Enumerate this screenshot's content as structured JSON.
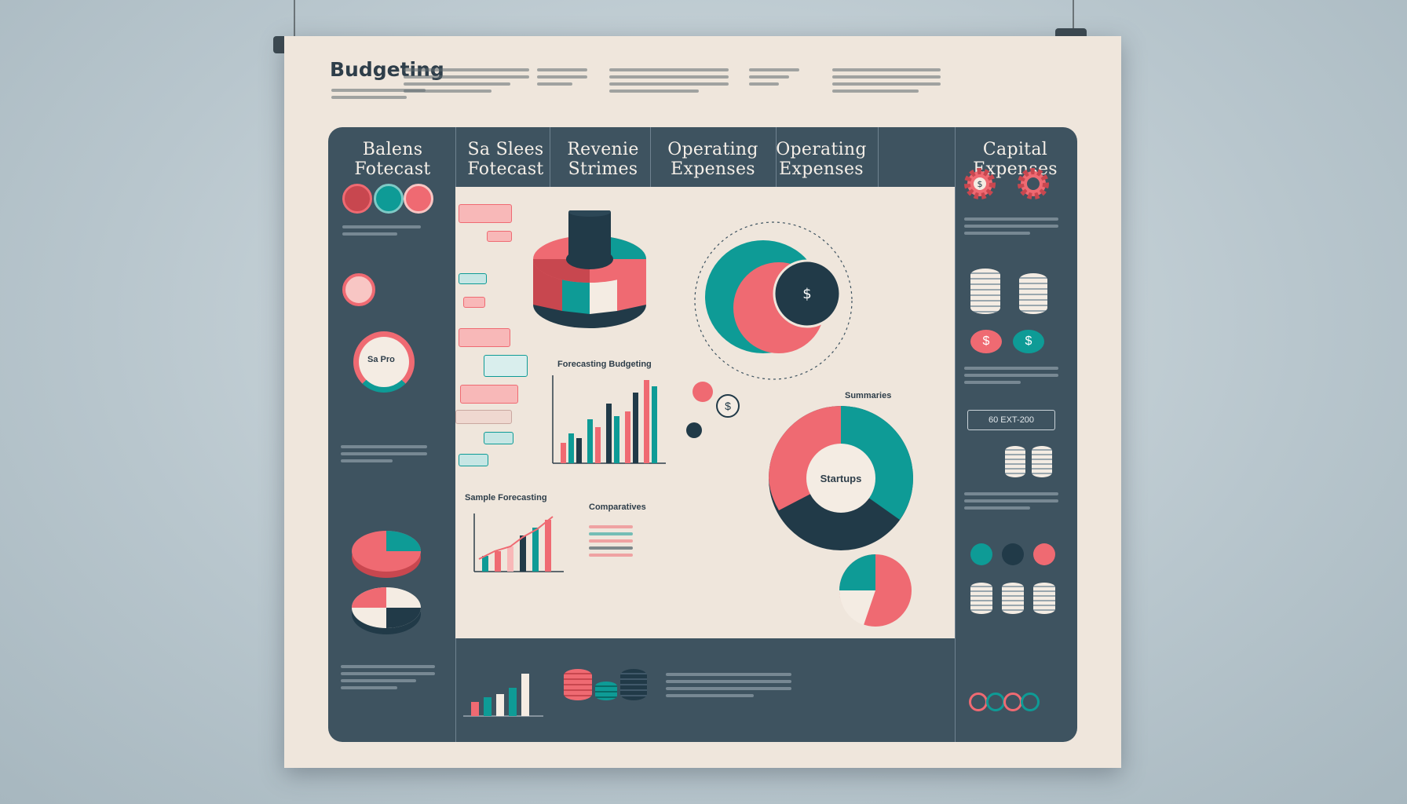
{
  "poster": {
    "title": "Budgeting"
  },
  "columns": [
    {
      "label": "Balens Fotecast"
    },
    {
      "label": "Sa Slees Fotecast"
    },
    {
      "label": "Revenie Strimes"
    },
    {
      "label": "Operating Expenses"
    },
    {
      "label": "Operating Expenses"
    },
    {
      "label": "Capital Expenses"
    }
  ],
  "center_labels": {
    "bar_chart_title": "Forecasting Budgeting",
    "trend_title": "Sample Forecasting",
    "comparison_title": "Comparatives",
    "donut_center": "Startups",
    "summary_title": "Summaries",
    "pie_left": "Sa Pro",
    "scale_box": "60 EXT-200"
  },
  "colors": {
    "teal": "#0e9b96",
    "coral": "#ef6a72",
    "navy": "#213a48",
    "cream": "#efe6dc",
    "slate": "#3e5360"
  },
  "icons": [
    "dollar-icon",
    "gear-icon",
    "coin-stack-icon",
    "pin-icon"
  ]
}
